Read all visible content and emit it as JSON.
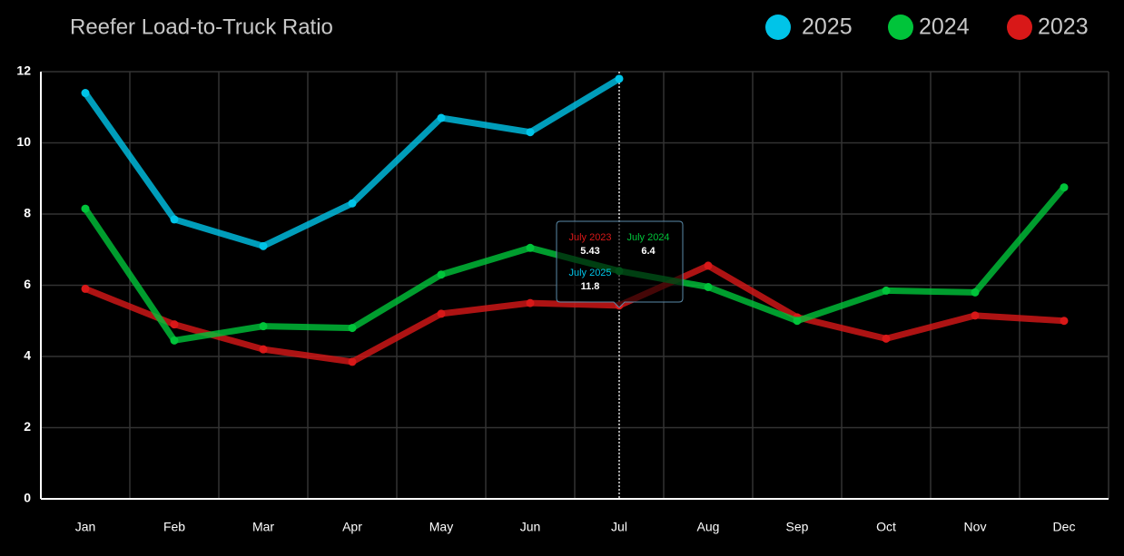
{
  "chart_data": {
    "type": "line",
    "title": "Reefer Load-to-Truck Ratio",
    "categories": [
      "Jan",
      "Feb",
      "Mar",
      "Apr",
      "May",
      "Jun",
      "Jul",
      "Aug",
      "Sep",
      "Oct",
      "Nov",
      "Dec"
    ],
    "series": [
      {
        "name": "2025",
        "color": "#00c4e8",
        "values": [
          11.4,
          7.85,
          7.1,
          8.3,
          10.7,
          10.3,
          11.8,
          null,
          null,
          null,
          null,
          null
        ]
      },
      {
        "name": "2024",
        "color": "#00c43a",
        "values": [
          8.15,
          4.45,
          4.85,
          4.8,
          6.3,
          7.05,
          6.4,
          5.95,
          5.0,
          5.85,
          5.8,
          8.75
        ]
      },
      {
        "name": "2023",
        "color": "#d81818",
        "values": [
          5.9,
          4.9,
          4.2,
          3.85,
          5.2,
          5.5,
          5.43,
          6.55,
          5.1,
          4.5,
          5.15,
          5.0
        ]
      }
    ],
    "ylim": [
      0,
      12
    ],
    "yticks": [
      0,
      2,
      4,
      6,
      8,
      10,
      12
    ],
    "grid": true,
    "legend": "top-right",
    "tooltip": [
      {
        "label": "July 2023"
      },
      {
        "label": "July 2024"
      },
      {
        "label": "July 2025"
      }
    ]
  }
}
